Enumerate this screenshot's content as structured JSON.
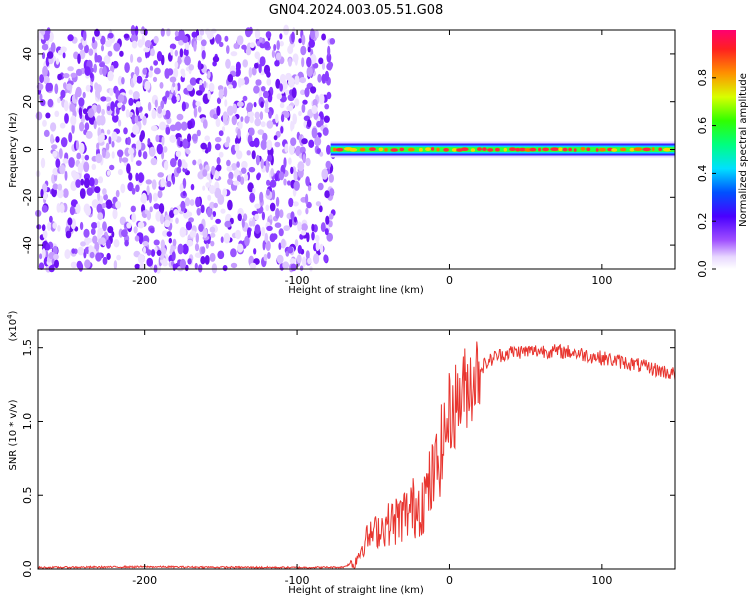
{
  "title": "GN04.2024.003.05.51.G08",
  "chart_data": [
    {
      "type": "heatmap",
      "xlabel": "Height of straight line (km)",
      "ylabel": "Frequency (Hz)",
      "xlim": [
        -270,
        148
      ],
      "ylim": [
        -50,
        50
      ],
      "xticks": [
        -200,
        -100,
        0,
        100
      ],
      "yticks": [
        -40,
        -20,
        0,
        20,
        40
      ],
      "noise_region_x": [
        -270,
        -76
      ],
      "signal_start_x": -78,
      "signal_frequency": 0,
      "colorbar": {
        "label": "Normalized spectral amplitude",
        "range": [
          0,
          1
        ],
        "ticks": [
          0.0,
          0.2,
          0.4,
          0.6,
          0.8
        ]
      }
    },
    {
      "type": "line",
      "xlabel": "Height of straight line (km)",
      "ylabel": "SNR (10 * v/v)",
      "y_scale_note": "(x10",
      "y_scale_exp": "4",
      "y_scale_close": ")",
      "xlim": [
        -270,
        148
      ],
      "ylim": [
        0,
        1.62
      ],
      "xticks": [
        -200,
        -100,
        0,
        100
      ],
      "yticks": [
        0.0,
        0.5,
        1.0,
        1.5
      ],
      "ytick_labels": [
        "0.0",
        "0.5",
        "1.0",
        "1.5"
      ],
      "color": "#e8352f",
      "series": [
        {
          "x": [
            -270,
            -200,
            -150,
            -100,
            -70,
            -62,
            -55,
            -45,
            -35,
            -25,
            -15,
            -8,
            0,
            10,
            20,
            30,
            40,
            60,
            80,
            100,
            120,
            140,
            148
          ],
          "values": [
            0.01,
            0.015,
            0.012,
            0.01,
            0.012,
            0.05,
            0.2,
            0.28,
            0.33,
            0.4,
            0.5,
            0.7,
            1.05,
            1.22,
            1.36,
            1.44,
            1.47,
            1.48,
            1.47,
            1.43,
            1.39,
            1.34,
            1.32
          ]
        }
      ]
    }
  ]
}
